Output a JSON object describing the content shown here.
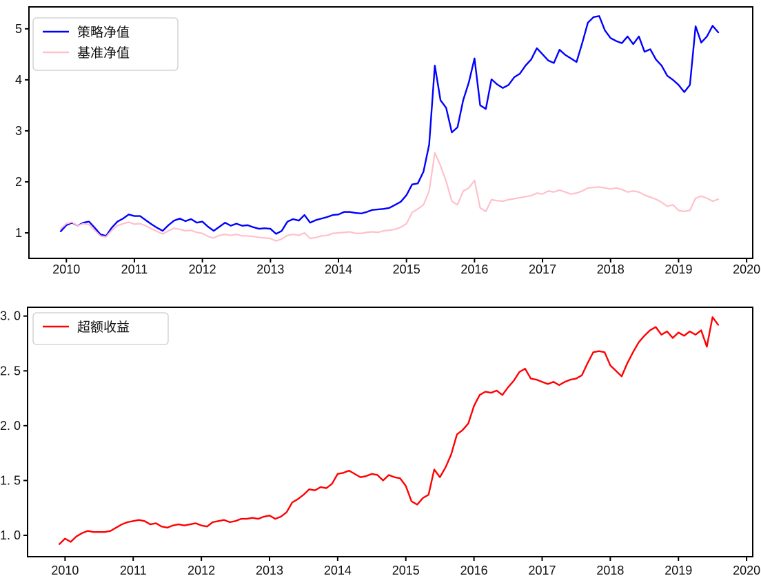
{
  "figure": {
    "background": "#ffffff",
    "axis_color": "#000000",
    "tick_label_color": "#1a1a1a",
    "legend_border_color": "#cccccc",
    "legend_fill": "#ffffff"
  },
  "chart_data": [
    {
      "type": "line",
      "title": "",
      "xlabel": "",
      "ylabel": "",
      "grid": false,
      "legend_position": "upper-left",
      "x_start_year": 2009,
      "x_start_month": 11,
      "x_step": "monthly",
      "xlim": [
        2009.45,
        2020.09
      ],
      "ylim": [
        0.5,
        5.43
      ],
      "x_ticks": [
        2010,
        2011,
        2012,
        2013,
        2014,
        2015,
        2016,
        2017,
        2018,
        2019,
        2020
      ],
      "y_ticks": [
        {
          "v": 1,
          "label": "1"
        },
        {
          "v": 2,
          "label": "2"
        },
        {
          "v": 3,
          "label": "3"
        },
        {
          "v": 4,
          "label": "4"
        },
        {
          "v": 5,
          "label": "5"
        }
      ],
      "legend": [
        {
          "label": "策略净值",
          "color": "#0000ff"
        },
        {
          "label": "基准净值",
          "color": "#ffc0cb"
        }
      ],
      "series": [
        {
          "name": "策略净值",
          "color": "#0000ff",
          "width": 2.4,
          "values": [
            1.03,
            1.15,
            1.2,
            1.14,
            1.2,
            1.22,
            1.1,
            0.97,
            0.94,
            1.1,
            1.22,
            1.28,
            1.36,
            1.33,
            1.33,
            1.25,
            1.17,
            1.1,
            1.04,
            1.15,
            1.24,
            1.28,
            1.23,
            1.27,
            1.2,
            1.22,
            1.12,
            1.04,
            1.12,
            1.2,
            1.14,
            1.18,
            1.14,
            1.15,
            1.11,
            1.08,
            1.09,
            1.08,
            0.98,
            1.04,
            1.22,
            1.27,
            1.24,
            1.35,
            1.2,
            1.25,
            1.28,
            1.31,
            1.35,
            1.36,
            1.41,
            1.41,
            1.39,
            1.38,
            1.41,
            1.45,
            1.46,
            1.47,
            1.49,
            1.55,
            1.61,
            1.74,
            1.95,
            1.97,
            2.2,
            2.73,
            4.28,
            3.6,
            3.45,
            2.97,
            3.07,
            3.6,
            3.95,
            4.42,
            3.5,
            3.43,
            4.01,
            3.91,
            3.84,
            3.9,
            4.05,
            4.12,
            4.28,
            4.4,
            4.62,
            4.5,
            4.38,
            4.33,
            4.59,
            4.49,
            4.42,
            4.35,
            4.72,
            5.12,
            5.23,
            5.25,
            4.97,
            4.82,
            4.76,
            4.72,
            4.85,
            4.7,
            4.85,
            4.55,
            4.6,
            4.4,
            4.28,
            4.08,
            4.0,
            3.9,
            3.76,
            3.9,
            5.05,
            4.73,
            4.85,
            5.06,
            4.93
          ]
        },
        {
          "name": "基准净值",
          "color": "#ffc0cb",
          "width": 2.2,
          "values": [
            1.08,
            1.18,
            1.21,
            1.14,
            1.18,
            1.16,
            1.05,
            0.94,
            0.92,
            1.05,
            1.14,
            1.18,
            1.21,
            1.17,
            1.18,
            1.14,
            1.08,
            1.03,
            0.98,
            1.04,
            1.09,
            1.07,
            1.04,
            1.05,
            1.01,
            0.99,
            0.93,
            0.9,
            0.95,
            0.97,
            0.95,
            0.97,
            0.94,
            0.94,
            0.93,
            0.91,
            0.9,
            0.89,
            0.84,
            0.88,
            0.95,
            0.97,
            0.95,
            1.0,
            0.89,
            0.91,
            0.94,
            0.95,
            0.99,
            1.0,
            1.01,
            1.02,
            0.99,
            0.99,
            1.01,
            1.02,
            1.01,
            1.04,
            1.05,
            1.07,
            1.11,
            1.18,
            1.4,
            1.47,
            1.55,
            1.82,
            2.57,
            2.32,
            2.01,
            1.62,
            1.55,
            1.82,
            1.88,
            2.03,
            1.49,
            1.42,
            1.65,
            1.63,
            1.62,
            1.65,
            1.67,
            1.69,
            1.71,
            1.73,
            1.78,
            1.76,
            1.82,
            1.8,
            1.84,
            1.8,
            1.76,
            1.78,
            1.82,
            1.88,
            1.89,
            1.9,
            1.88,
            1.86,
            1.88,
            1.85,
            1.8,
            1.82,
            1.8,
            1.74,
            1.7,
            1.66,
            1.6,
            1.52,
            1.55,
            1.44,
            1.42,
            1.44,
            1.68,
            1.72,
            1.68,
            1.62,
            1.66
          ]
        }
      ]
    },
    {
      "type": "line",
      "title": "",
      "xlabel": "",
      "ylabel": "",
      "grid": false,
      "legend_position": "upper-left",
      "x_start_year": 2009,
      "x_start_month": 11,
      "x_step": "monthly",
      "xlim": [
        2009.45,
        2020.09
      ],
      "ylim": [
        0.805,
        3.08
      ],
      "x_ticks": [
        2010,
        2011,
        2012,
        2013,
        2014,
        2015,
        2016,
        2017,
        2018,
        2019,
        2020
      ],
      "y_ticks": [
        {
          "v": 1.0,
          "label": "1. 0"
        },
        {
          "v": 1.5,
          "label": "1. 5"
        },
        {
          "v": 2.0,
          "label": "2. 0"
        },
        {
          "v": 2.5,
          "label": "2. 5"
        },
        {
          "v": 3.0,
          "label": "3. 0"
        }
      ],
      "legend": [
        {
          "label": "超额收益",
          "color": "#ff0000"
        }
      ],
      "series": [
        {
          "name": "超额收益",
          "color": "#ff0000",
          "width": 2.4,
          "values": [
            0.92,
            0.97,
            0.94,
            0.99,
            1.02,
            1.04,
            1.03,
            1.03,
            1.03,
            1.04,
            1.07,
            1.1,
            1.12,
            1.13,
            1.14,
            1.13,
            1.1,
            1.11,
            1.08,
            1.07,
            1.09,
            1.1,
            1.09,
            1.1,
            1.11,
            1.09,
            1.08,
            1.12,
            1.13,
            1.14,
            1.12,
            1.13,
            1.15,
            1.15,
            1.16,
            1.15,
            1.17,
            1.18,
            1.15,
            1.17,
            1.21,
            1.3,
            1.33,
            1.37,
            1.42,
            1.41,
            1.44,
            1.43,
            1.47,
            1.56,
            1.57,
            1.59,
            1.56,
            1.53,
            1.54,
            1.56,
            1.55,
            1.5,
            1.55,
            1.53,
            1.52,
            1.45,
            1.31,
            1.28,
            1.34,
            1.37,
            1.6,
            1.53,
            1.62,
            1.74,
            1.92,
            1.96,
            2.02,
            2.18,
            2.28,
            2.31,
            2.3,
            2.32,
            2.28,
            2.35,
            2.41,
            2.49,
            2.52,
            2.43,
            2.42,
            2.4,
            2.38,
            2.4,
            2.37,
            2.4,
            2.42,
            2.43,
            2.46,
            2.57,
            2.67,
            2.68,
            2.67,
            2.55,
            2.5,
            2.45,
            2.57,
            2.67,
            2.76,
            2.82,
            2.87,
            2.9,
            2.83,
            2.86,
            2.8,
            2.85,
            2.82,
            2.86,
            2.83,
            2.87,
            2.72,
            2.99,
            2.92
          ]
        }
      ]
    }
  ]
}
